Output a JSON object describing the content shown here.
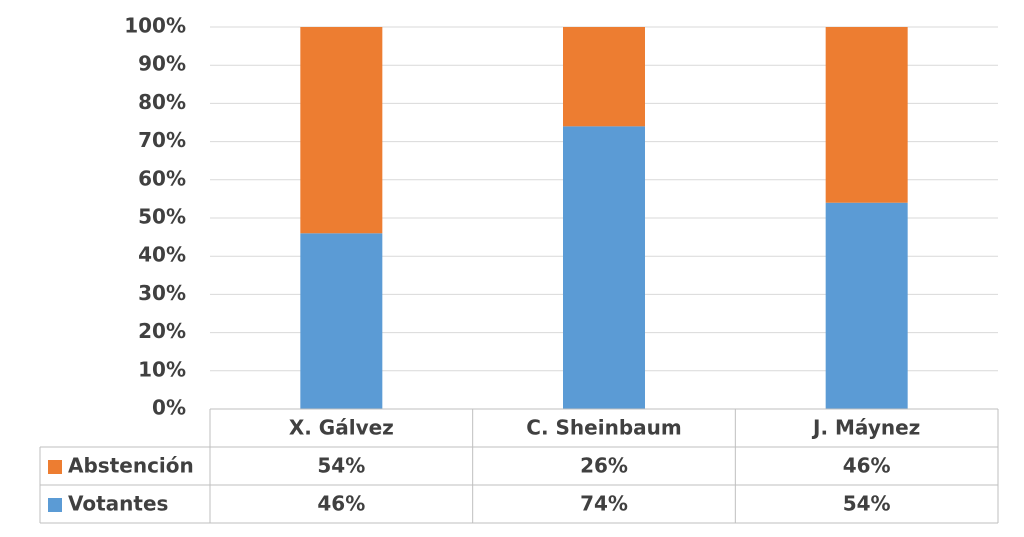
{
  "chart_data": {
    "type": "stacked_bar_100",
    "categories": [
      "X. Gálvez",
      "C. Sheinbaum",
      "J. Máynez"
    ],
    "series": [
      {
        "name": "Abstención",
        "color": "#ed7d31",
        "values": [
          54,
          26,
          46
        ],
        "value_labels": [
          "54%",
          "26%",
          "46%"
        ]
      },
      {
        "name": "Votantes",
        "color": "#5b9bd5",
        "values": [
          46,
          74,
          54
        ],
        "value_labels": [
          "46%",
          "74%",
          "54%"
        ]
      }
    ],
    "ylim": [
      0,
      100
    ],
    "yticks": [
      {
        "value": 0,
        "label": "0%"
      },
      {
        "value": 10,
        "label": "10%"
      },
      {
        "value": 20,
        "label": "20%"
      },
      {
        "value": 30,
        "label": "30%"
      },
      {
        "value": 40,
        "label": "40%"
      },
      {
        "value": 50,
        "label": "50%"
      },
      {
        "value": 60,
        "label": "60%"
      },
      {
        "value": 70,
        "label": "70%"
      },
      {
        "value": 80,
        "label": "80%"
      },
      {
        "value": 90,
        "label": "90%"
      },
      {
        "value": 100,
        "label": "100%"
      }
    ],
    "grid": true
  }
}
